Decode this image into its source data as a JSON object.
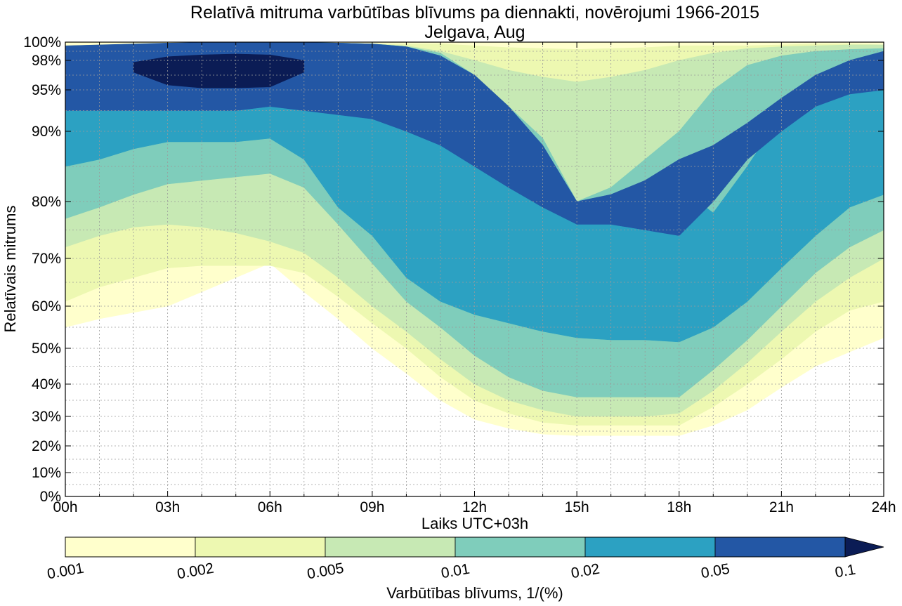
{
  "chart_data": {
    "type": "contour",
    "title": "Relatīvā mitruma varbūtības blīvums pa diennakti, novērojumi 1966-2015",
    "subtitle": "Jelgava, Aug",
    "xlabel": "Laiks UTC+03h",
    "ylabel": "Relatīvais mitrums",
    "x_tick_labels": [
      "00h",
      "03h",
      "06h",
      "09h",
      "12h",
      "15h",
      "18h",
      "21h",
      "24h"
    ],
    "x_tick_hours": [
      0,
      3,
      6,
      9,
      12,
      15,
      18,
      21,
      24
    ],
    "x_range_hours": [
      0,
      24
    ],
    "y_tick_labels": [
      "0%",
      "10%",
      "20%",
      "30%",
      "40%",
      "50%",
      "60%",
      "70%",
      "80%",
      "90%",
      "95%",
      "98%",
      "100%"
    ],
    "y_ticks": [
      0,
      10,
      20,
      30,
      40,
      50,
      60,
      70,
      80,
      90,
      95,
      98,
      100
    ],
    "y_range": [
      0,
      100
    ],
    "y_scale": "nonlinear, stretched toward 100%",
    "grid": true,
    "colorbar": {
      "label": "Varbūtības blīvums, 1/(%)",
      "tick_labels": [
        "0.001",
        "0.002",
        "0.005",
        "0.01",
        "0.02",
        "0.05",
        "0.1"
      ],
      "colors": [
        "#ffffcc",
        "#edf8b1",
        "#c7e9b4",
        "#7fcdbb",
        "#2ca1c2",
        "#2357a5",
        "#0b1c55"
      ],
      "extend": "max"
    },
    "levels": [
      {
        "min": 0.001,
        "color": "#ffffcc",
        "hours": [
          0,
          1,
          2,
          3,
          4,
          5,
          6,
          7,
          8,
          9,
          10,
          11,
          12,
          13,
          14,
          15,
          16,
          17,
          18,
          19,
          20,
          21,
          22,
          23,
          24
        ],
        "lower": [
          55,
          57,
          58.5,
          60,
          63,
          66,
          69,
          63,
          57,
          50,
          43,
          35,
          29,
          26,
          24,
          23.5,
          23.5,
          23.5,
          23.5,
          27,
          32,
          39,
          45,
          49,
          52.5
        ],
        "upper": [
          100,
          100,
          100,
          100,
          100,
          100,
          100,
          100,
          100,
          100,
          100,
          100,
          100,
          100,
          100,
          100,
          100,
          100,
          100,
          100,
          100,
          100,
          100,
          100,
          100
        ]
      },
      {
        "min": 0.002,
        "color": "#edf8b1",
        "hours": [
          0,
          1,
          2,
          3,
          4,
          5,
          6,
          7,
          8,
          9,
          10,
          11,
          12,
          13,
          14,
          15,
          16,
          17,
          18,
          19,
          20,
          21,
          22,
          23,
          24
        ],
        "upper": [
          99.6,
          99.6,
          99.6,
          99.6,
          99.6,
          99.6,
          99.7,
          99.8,
          99.8,
          99.8,
          99.8,
          99.8,
          99.6,
          99.4,
          99.3,
          99.2,
          99.3,
          99.4,
          99.6,
          99.6,
          99.6,
          99.7,
          99.8,
          99.8,
          99.7
        ],
        "lower": [
          61,
          64,
          66,
          68,
          68.5,
          68.5,
          68.5,
          67,
          62,
          56,
          50,
          42,
          35,
          31,
          28,
          27,
          27,
          27,
          27,
          33,
          40,
          47,
          54,
          59,
          61
        ]
      },
      {
        "min": 0.005,
        "color": "#c7e9b4",
        "hours": [
          0,
          1,
          2,
          3,
          4,
          5,
          6,
          7,
          8,
          9,
          10,
          11,
          12,
          13,
          14,
          15,
          16,
          17,
          18,
          19,
          20,
          21,
          22,
          23,
          24
        ],
        "upper": [
          99.3,
          99.4,
          99.5,
          99.6,
          99.7,
          99.8,
          99.9,
          99.9,
          99.9,
          99.8,
          99.6,
          99,
          98,
          97,
          96.3,
          95.8,
          96.3,
          97,
          98,
          98.8,
          99.3,
          99.5,
          99.6,
          99.7,
          99.7
        ],
        "lower": [
          72,
          74,
          75.5,
          76,
          75.5,
          74.5,
          73,
          71,
          66,
          60,
          54,
          47,
          40,
          35,
          32,
          30,
          30,
          30,
          31,
          38,
          46,
          54,
          61,
          66,
          70
        ]
      },
      {
        "min": 0.01,
        "color": "#7fcdbb",
        "hours": [
          0,
          1,
          2,
          3,
          4,
          5,
          6,
          7,
          8,
          9,
          10,
          11,
          12,
          13,
          14,
          15,
          16,
          17,
          18,
          19,
          20,
          21,
          22,
          23,
          24
        ],
        "upper": [
          99,
          99.2,
          99.4,
          99.6,
          99.7,
          99.8,
          99.9,
          99.9,
          99.9,
          99.8,
          99.5,
          98.8,
          96.5,
          93,
          89,
          80,
          82,
          86,
          90,
          95,
          97.5,
          98.5,
          99,
          99.2,
          99.3
        ],
        "lower": [
          77,
          79,
          81,
          82.5,
          83,
          83.5,
          84,
          82,
          76,
          69,
          61,
          55,
          48,
          42,
          38,
          36,
          36,
          36,
          36,
          44,
          52,
          60,
          67,
          72,
          75
        ]
      },
      {
        "min": 0.02,
        "color": "#2ca1c2",
        "hours": [
          0,
          1,
          2,
          3,
          4,
          5,
          6,
          7,
          8,
          9,
          10,
          11,
          12,
          13,
          14,
          15,
          16,
          17,
          18,
          19,
          20,
          21,
          22,
          23,
          24
        ],
        "upper": [
          99.5,
          99.6,
          99.7,
          99.8,
          99.9,
          99.9,
          99.95,
          99.95,
          99.9,
          99.8,
          99.5,
          98.5,
          96,
          91,
          85,
          77,
          78,
          79,
          82,
          78,
          85,
          92,
          95.5,
          97.5,
          98.5
        ],
        "lower": [
          85,
          86,
          87.5,
          88.5,
          88.5,
          88.5,
          89,
          86,
          79,
          74,
          66,
          61,
          58,
          56,
          54,
          52.5,
          52,
          52,
          51.5,
          55,
          61,
          68,
          74,
          79,
          81
        ]
      },
      {
        "min": 0.05,
        "color": "#2357a5",
        "hours": [
          0,
          1,
          2,
          3,
          4,
          5,
          6,
          7,
          8,
          9,
          10,
          11,
          12,
          13,
          14,
          15,
          16,
          17,
          18,
          19,
          20,
          21,
          22,
          23,
          24
        ],
        "upper": [
          99.6,
          99.7,
          99.8,
          99.9,
          99.95,
          99.95,
          99.95,
          99.95,
          99.9,
          99.8,
          99.5,
          98.5,
          96.5,
          93,
          88,
          80,
          81,
          83,
          86,
          88,
          91,
          94,
          96.5,
          98,
          99
        ],
        "lower": [
          92.5,
          92.5,
          92.5,
          92.5,
          92.5,
          92.5,
          93,
          92.5,
          92,
          91.5,
          90,
          88,
          85,
          82,
          79,
          76,
          76,
          75,
          74,
          80,
          86,
          90,
          93,
          94.5,
          95
        ]
      },
      {
        "min": 0.1,
        "color": "#0b1c55",
        "hours": [
          2,
          3,
          4,
          5,
          6,
          7
        ],
        "upper": [
          97.8,
          98.4,
          98.6,
          98.7,
          98.6,
          98.0
        ],
        "lower": [
          96.8,
          95.5,
          95.2,
          95.2,
          95.3,
          96.8
        ]
      }
    ]
  }
}
